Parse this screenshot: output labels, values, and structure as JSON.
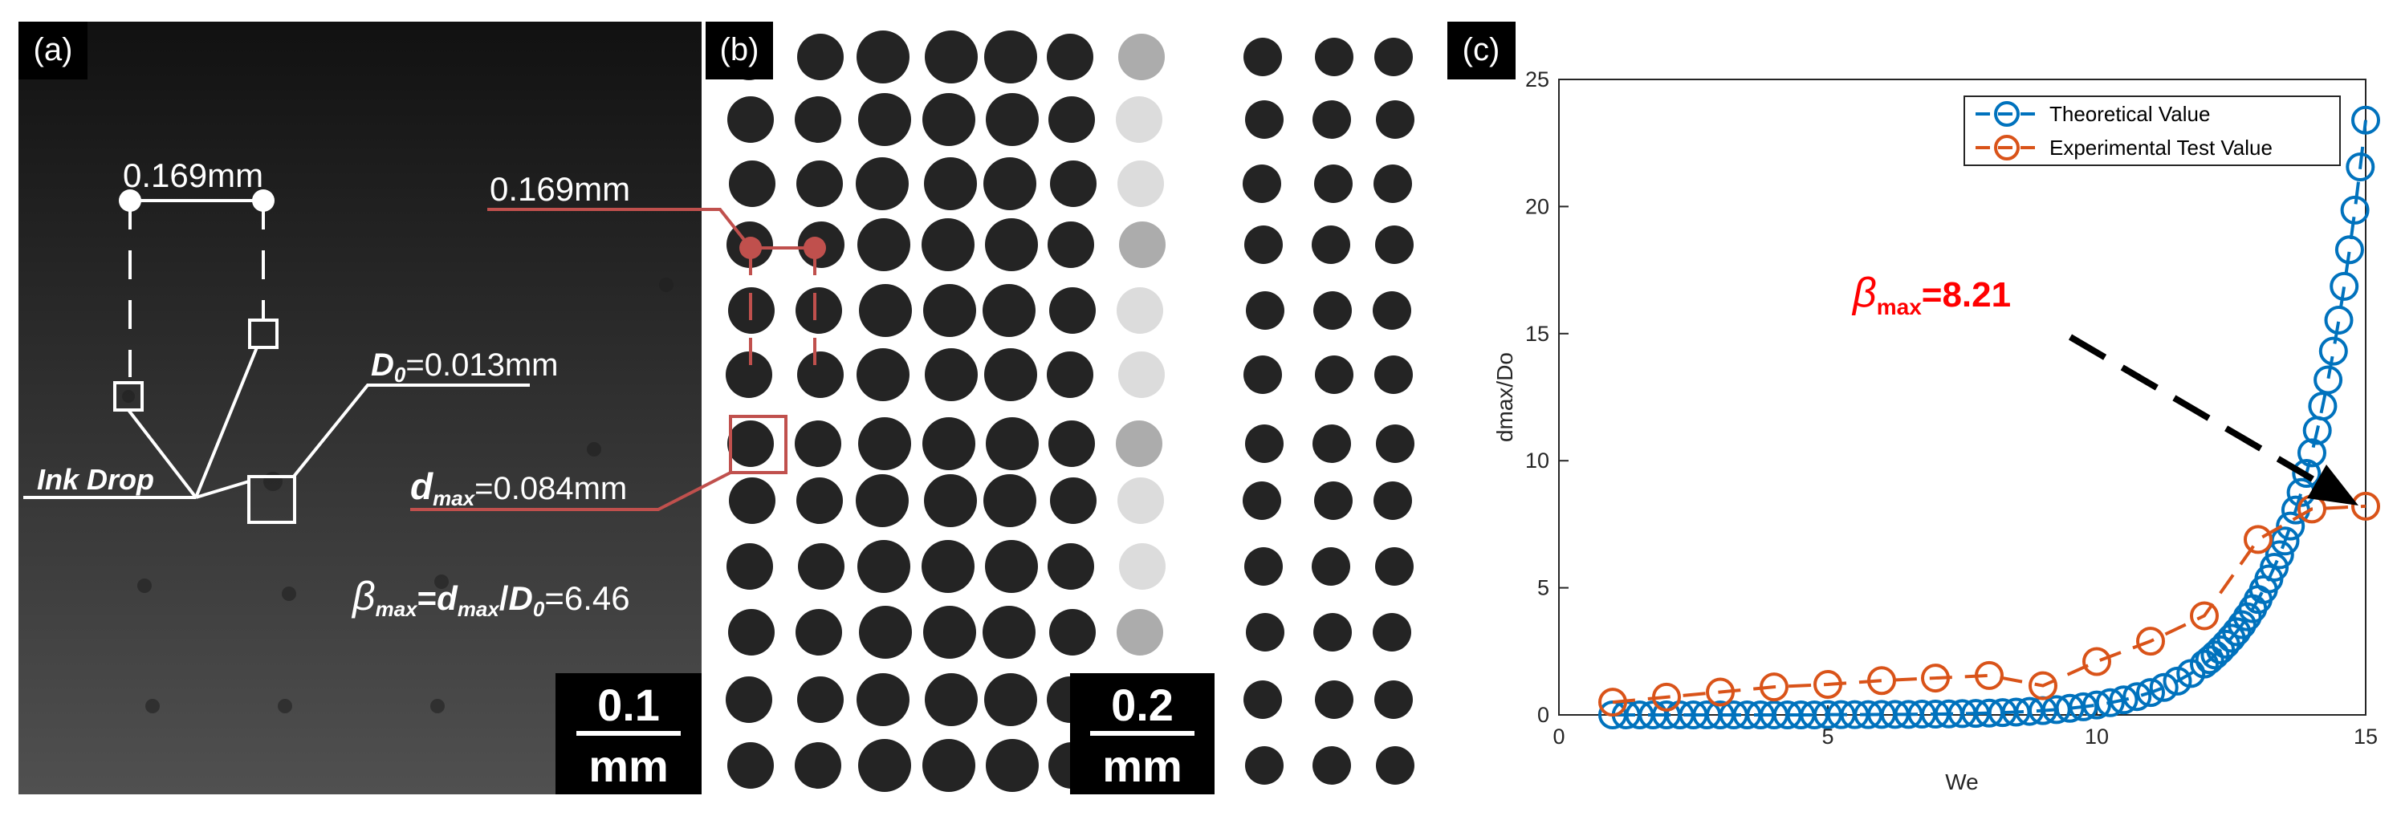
{
  "panels": {
    "a": {
      "label": "(a)",
      "spacing": "0.169mm",
      "ink_drop": "Ink Drop",
      "d0": {
        "symbol": "D",
        "sub": "0",
        "text": "=0.013mm"
      },
      "beta": {
        "symbol": "β",
        "sub": "max",
        "eq": "=",
        "num": "d",
        "num_sub": "max",
        "slash": "/",
        "den": "D",
        "den_sub": "0",
        "text": "=6.46"
      },
      "scale_bar": {
        "value": "0.1",
        "unit": "mm"
      }
    },
    "b": {
      "label": "(b)",
      "spacing": "0.169mm",
      "dmax": {
        "symbol": "d",
        "sub": "max",
        "text": "=0.084mm"
      },
      "scale_bar": {
        "value": "0.2",
        "unit": "mm"
      }
    }
  },
  "chart_data": {
    "type": "line",
    "label": "(c)",
    "xlabel": "We",
    "ylabel": "dmax/Do",
    "xlim": [
      0,
      15
    ],
    "ylim": [
      0,
      25
    ],
    "xticks": [
      0,
      5,
      10,
      15
    ],
    "yticks": [
      0,
      5,
      10,
      15,
      20,
      25
    ],
    "grid": false,
    "legend": "upper right",
    "annotation": {
      "symbol": "β",
      "sub": "max",
      "text": "=8.21",
      "color": "#ff0000"
    },
    "series": [
      {
        "name": "Theoretical Value",
        "color": "#0072bd",
        "x": [
          1,
          1.25,
          1.5,
          1.75,
          2,
          2.25,
          2.5,
          2.75,
          3,
          3.25,
          3.5,
          3.75,
          4,
          4.25,
          4.5,
          4.75,
          5,
          5.25,
          5.5,
          5.75,
          6,
          6.25,
          6.5,
          6.75,
          7,
          7.25,
          7.5,
          7.75,
          8,
          8.25,
          8.5,
          8.75,
          9,
          9.25,
          9.5,
          9.75,
          10,
          10.25,
          10.5,
          10.75,
          11,
          11.25,
          11.5,
          11.75,
          12,
          12.1,
          12.2,
          12.3,
          12.4,
          12.5,
          12.6,
          12.7,
          12.8,
          12.9,
          13,
          13.1,
          13.2,
          13.3,
          13.4,
          13.5,
          13.6,
          13.7,
          13.8,
          13.9,
          14,
          14.1,
          14.2,
          14.3,
          14.4,
          14.5,
          14.6,
          14.7,
          14.8,
          14.9,
          15
        ],
        "values": [
          0,
          0,
          0,
          0,
          0,
          0,
          0,
          0,
          0,
          0,
          0,
          0,
          0,
          0,
          0,
          0,
          0.01,
          0.01,
          0.01,
          0.01,
          0.02,
          0.02,
          0.02,
          0.03,
          0.03,
          0.04,
          0.05,
          0.06,
          0.07,
          0.09,
          0.11,
          0.14,
          0.17,
          0.21,
          0.26,
          0.32,
          0.39,
          0.48,
          0.59,
          0.72,
          0.88,
          1.08,
          1.33,
          1.63,
          2.0,
          2.17,
          2.36,
          2.56,
          2.78,
          3.02,
          3.27,
          3.55,
          3.86,
          4.18,
          4.54,
          4.93,
          5.35,
          5.81,
          6.3,
          6.84,
          7.43,
          8.06,
          8.75,
          9.5,
          10.31,
          11.19,
          12.15,
          13.18,
          14.31,
          15.53,
          16.86,
          18.3,
          19.86,
          21.56,
          23.4
        ]
      },
      {
        "name": "Experimental Test Value",
        "color": "#d95319",
        "x": [
          1,
          2,
          3,
          4,
          5,
          6,
          7,
          8,
          9,
          10,
          11,
          12,
          13,
          14,
          15
        ],
        "values": [
          0.5,
          0.7,
          0.9,
          1.1,
          1.2,
          1.35,
          1.45,
          1.55,
          1.15,
          2.1,
          2.9,
          3.9,
          6.9,
          8.1,
          8.21
        ]
      }
    ]
  }
}
